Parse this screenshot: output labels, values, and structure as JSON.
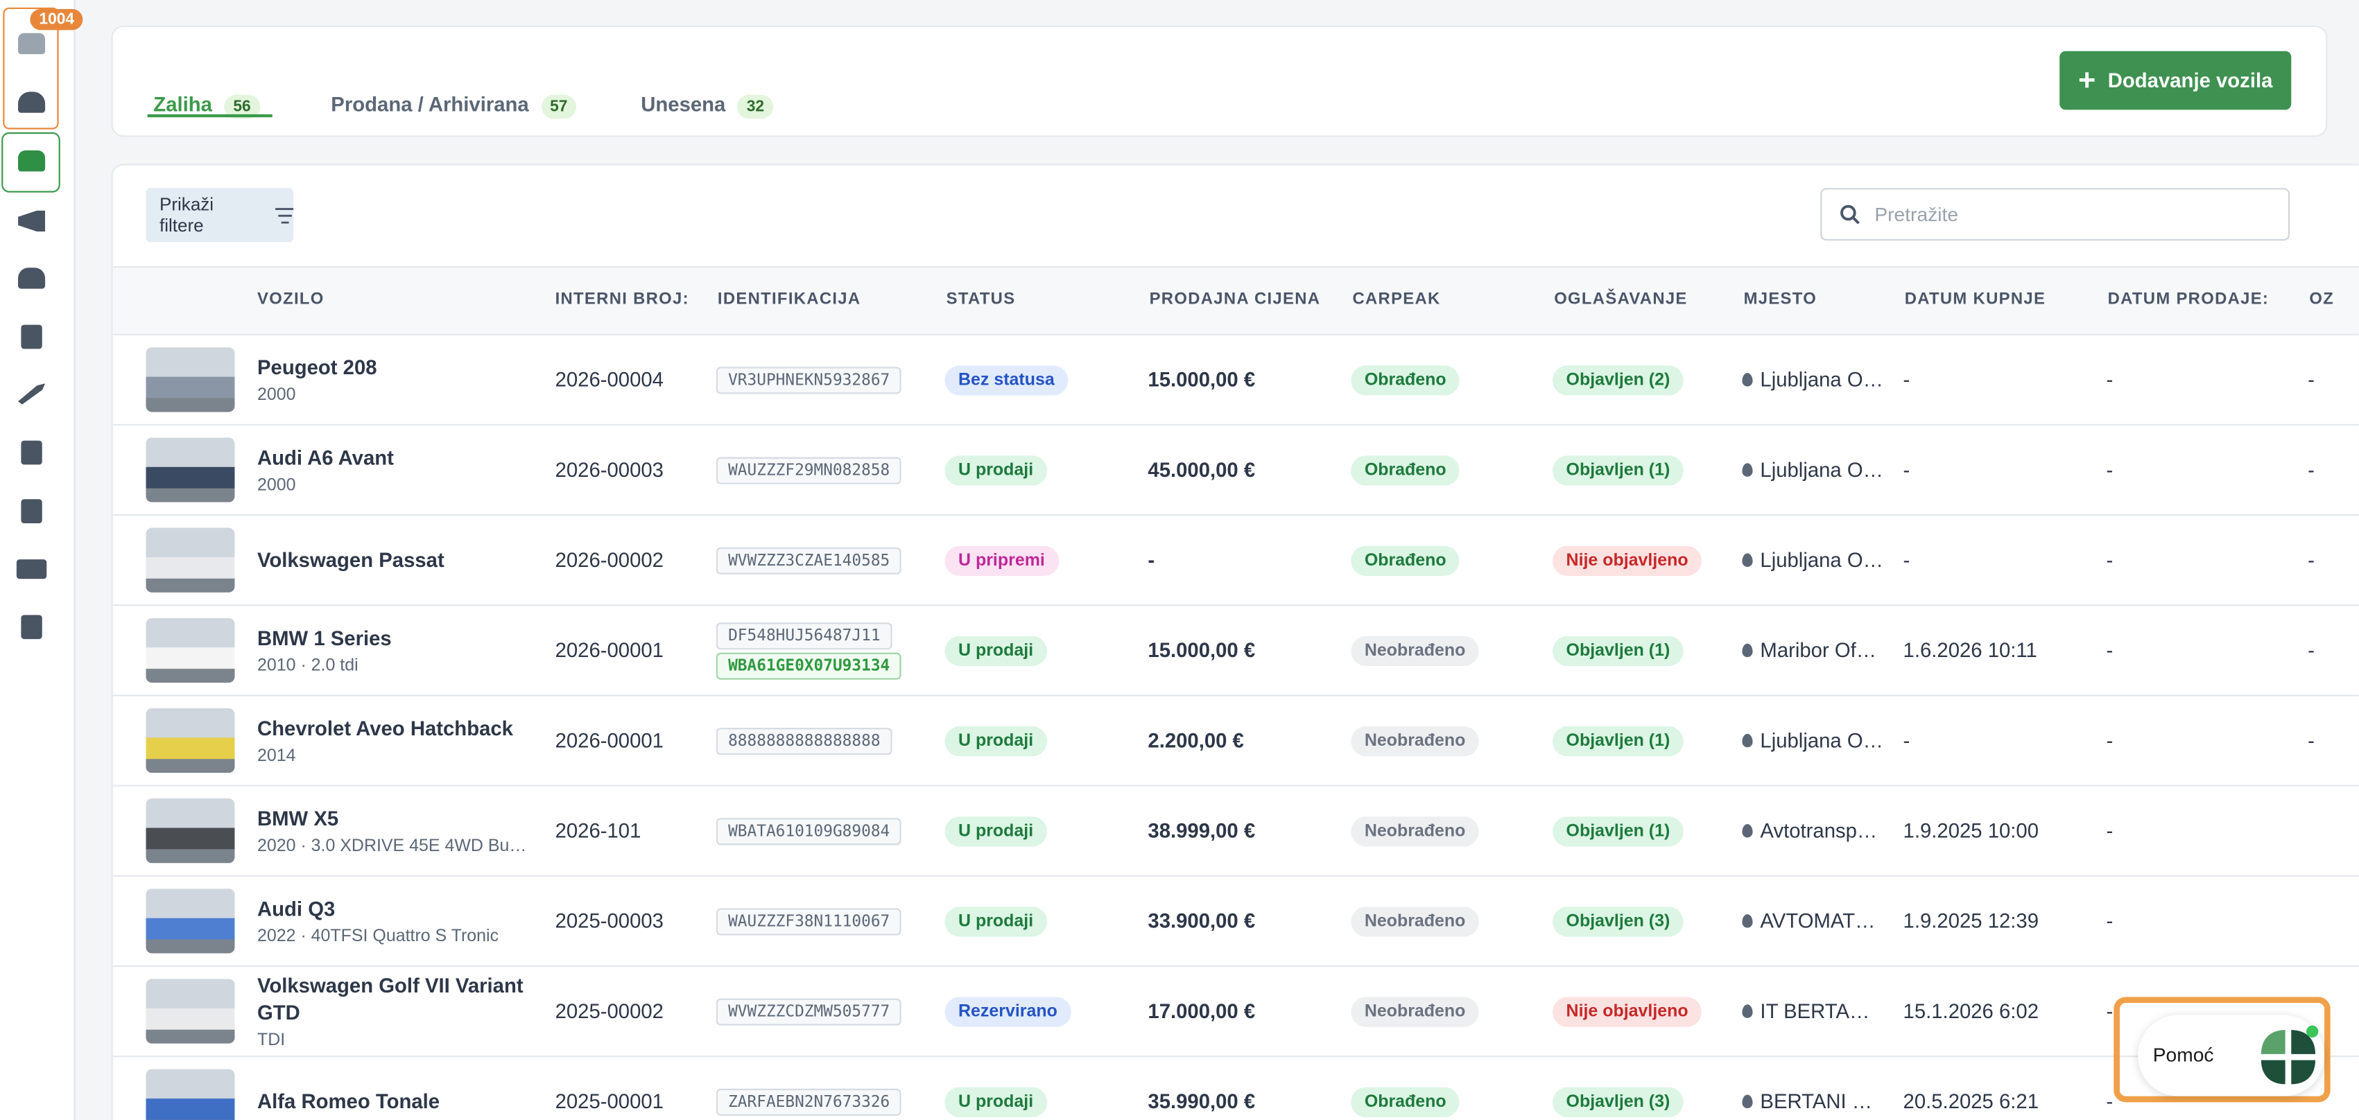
{
  "sidebar": {
    "badge": "1004"
  },
  "tabs": [
    {
      "label": "Zaliha",
      "count": 56
    },
    {
      "label": "Prodana / Arhivirana",
      "count": 57
    },
    {
      "label": "Unesena",
      "count": 32
    }
  ],
  "add_button": "Dodavanje vozila",
  "filter_button": "Prikaži filtere",
  "search_placeholder": "Pretražite",
  "table": {
    "columns": [
      "VOZILO",
      "INTERNI BROJ:",
      "IDENTIFIKACIJA",
      "STATUS",
      "PRODAJNA CIJENA",
      "CARPEAK",
      "OGLAŠAVANJE",
      "MJESTO",
      "DATUM KUPNJE",
      "DATUM PRODAJE:",
      "OZ"
    ],
    "rows": [
      {
        "vehicle": "Peugeot 208",
        "subtitle": "2000",
        "internal": "2026-00004",
        "ids": [
          {
            "code": "VR3UPHNEKN5932867",
            "tone": "gray"
          }
        ],
        "status": {
          "label": "Bez statusa",
          "tone": "blue"
        },
        "price": "15.000,00 €",
        "carpeak": {
          "label": "Obrađeno",
          "tone": "green"
        },
        "ads": {
          "label": "Objavljen (2)",
          "tone": "green"
        },
        "location": "Ljubljana O…",
        "bought": "-",
        "sold": "-",
        "oz": "-"
      },
      {
        "vehicle": "Audi A6 Avant",
        "subtitle": "2000",
        "internal": "2026-00003",
        "ids": [
          {
            "code": "WAUZZZF29MN082858",
            "tone": "gray"
          }
        ],
        "status": {
          "label": "U prodaji",
          "tone": "green"
        },
        "price": "45.000,00 €",
        "carpeak": {
          "label": "Obrađeno",
          "tone": "green"
        },
        "ads": {
          "label": "Objavljen (1)",
          "tone": "green"
        },
        "location": "Ljubljana O…",
        "bought": "-",
        "sold": "-",
        "oz": "-"
      },
      {
        "vehicle": "Volkswagen Passat",
        "internal": "2026-00002",
        "ids": [
          {
            "code": "WVWZZZ3CZAE140585",
            "tone": "gray"
          }
        ],
        "status": {
          "label": "U pripremi",
          "tone": "pink"
        },
        "price": "-",
        "carpeak": {
          "label": "Obrađeno",
          "tone": "green"
        },
        "ads": {
          "label": "Nije objavljeno",
          "tone": "red"
        },
        "location": "Ljubljana O…",
        "bought": "-",
        "sold": "-",
        "oz": "-"
      },
      {
        "vehicle": "BMW 1 Series",
        "subtitle": "2010 · 2.0 tdi",
        "internal": "2026-00001",
        "ids": [
          {
            "code": "DF548HUJ56487J11",
            "tone": "gray"
          },
          {
            "code": "WBA61GE0X07U93134",
            "tone": "green"
          }
        ],
        "status": {
          "label": "U prodaji",
          "tone": "green"
        },
        "price": "15.000,00 €",
        "carpeak": {
          "label": "Neobrađeno",
          "tone": "gray"
        },
        "ads": {
          "label": "Objavljen (1)",
          "tone": "green"
        },
        "location": "Maribor Of…",
        "bought": "1.6.2026 10:11",
        "sold": "-",
        "oz": "-"
      },
      {
        "vehicle": "Chevrolet Aveo Hatchback",
        "subtitle": "2014",
        "internal": "2026-00001",
        "ids": [
          {
            "code": "8888888888888888",
            "tone": "gray"
          }
        ],
        "status": {
          "label": "U prodaji",
          "tone": "green"
        },
        "price": "2.200,00 €",
        "carpeak": {
          "label": "Neobrađeno",
          "tone": "gray"
        },
        "ads": {
          "label": "Objavljen (1)",
          "tone": "green"
        },
        "location": "Ljubljana O…",
        "bought": "-",
        "sold": "-",
        "oz": "-"
      },
      {
        "vehicle": "BMW X5",
        "subtitle": "2020 · 3.0 XDRIVE 45E 4WD Busi…",
        "internal": "2026-101",
        "ids": [
          {
            "code": "WBATA610109G89084",
            "tone": "gray"
          }
        ],
        "status": {
          "label": "U prodaji",
          "tone": "green"
        },
        "price": "38.999,00 €",
        "carpeak": {
          "label": "Neobrađeno",
          "tone": "gray"
        },
        "ads": {
          "label": "Objavljen (1)",
          "tone": "green"
        },
        "location": "Avtotransp…",
        "bought": "1.9.2025 10:00",
        "sold": "-"
      },
      {
        "vehicle": "Audi Q3",
        "subtitle": "2022 · 40TFSI Quattro S Tronic",
        "internal": "2025-00003",
        "ids": [
          {
            "code": "WAUZZZF38N1110067",
            "tone": "gray"
          }
        ],
        "status": {
          "label": "U prodaji",
          "tone": "green"
        },
        "price": "33.900,00 €",
        "carpeak": {
          "label": "Neobrađeno",
          "tone": "gray"
        },
        "ads": {
          "label": "Objavljen (3)",
          "tone": "green"
        },
        "location": "AVTOMAT…",
        "bought": "1.9.2025 12:39",
        "sold": "-"
      },
      {
        "vehicle": "Volkswagen Golf VII Variant GTD",
        "subtitle": "TDI",
        "internal": "2025-00002",
        "ids": [
          {
            "code": "WVWZZZCDZMW505777",
            "tone": "gray"
          }
        ],
        "status": {
          "label": "Rezervirano",
          "tone": "blue"
        },
        "price": "17.000,00 €",
        "carpeak": {
          "label": "Neobrađeno",
          "tone": "gray"
        },
        "ads": {
          "label": "Nije objavljeno",
          "tone": "red"
        },
        "location": "IT BERTA…",
        "bought": "15.1.2026 6:02",
        "sold": "-"
      },
      {
        "vehicle": "Alfa Romeo Tonale",
        "internal": "2025-00001",
        "ids": [
          {
            "code": "ZARFAEBN2N7673326",
            "tone": "gray"
          }
        ],
        "status": {
          "label": "U prodaji",
          "tone": "green"
        },
        "price": "35.990,00 €",
        "carpeak": {
          "label": "Obrađeno",
          "tone": "green"
        },
        "ads": {
          "label": "Objavljen (3)",
          "tone": "green"
        },
        "location": "BERTANI …",
        "bought": "20.5.2025 6:21",
        "sold": "-"
      }
    ]
  },
  "help": "Pomoć"
}
